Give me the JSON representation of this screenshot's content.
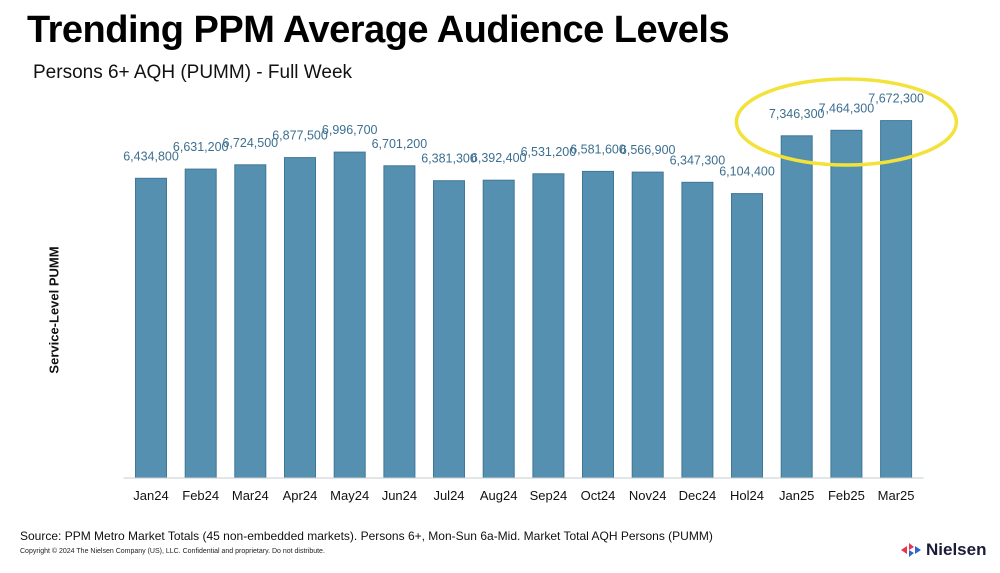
{
  "title": "Trending PPM Average Audience Levels",
  "subtitle": "Persons 6+ AQH (PUMM) - Full Week",
  "source": "Source: PPM Metro Market Totals (45 non-embedded markets). Persons 6+, Mon-Sun 6a-Mid. Market Total AQH Persons (PUMM)",
  "copyright": "Copyright © 2024 The Nielsen Company (US), LLC. Confidential and proprietary. Do not distribute.",
  "brand": {
    "name": "Nielsen",
    "logo_icon": "nielsen-logo-icon",
    "logo_colors": [
      "#e8344e",
      "#2c67c5"
    ]
  },
  "colors": {
    "bar": "#5690b0",
    "bar_edge": "#3f7798",
    "data_label": "#3d6f90",
    "baseline": "#c7ccd0",
    "highlight_ellipse": "#f2e23a"
  },
  "chart_data": {
    "type": "bar",
    "title": "Trending PPM Average Audience Levels",
    "subtitle": "Persons 6+ AQH (PUMM) - Full Week",
    "xlabel": "",
    "ylabel": "Service-Level PUMM",
    "ylim": [
      0,
      7900000
    ],
    "grid": false,
    "categories": [
      "Jan24",
      "Feb24",
      "Mar24",
      "Apr24",
      "May24",
      "Jun24",
      "Jul24",
      "Aug24",
      "Sep24",
      "Oct24",
      "Nov24",
      "Dec24",
      "Hol24",
      "Jan25",
      "Feb25",
      "Mar25"
    ],
    "values": [
      6434800,
      6631200,
      6724500,
      6877500,
      6996700,
      6701200,
      6381300,
      6392400,
      6531200,
      6581600,
      6566900,
      6347300,
      6104400,
      7346300,
      7464300,
      7672300
    ],
    "data_labels": [
      "6,434,800",
      "6,631,200",
      "6,724,500",
      "6,877,500",
      "6,996,700",
      "6,701,200",
      "6,381,300",
      "6,392,400",
      "6,531,200",
      "6,581,600",
      "6,566,900",
      "6,347,300",
      "6,104,400",
      "7,346,300",
      "7,464,300",
      "7,672,300"
    ],
    "annotations": [
      {
        "type": "ellipse",
        "highlights": [
          "Jan25",
          "Feb25",
          "Mar25"
        ]
      }
    ]
  }
}
